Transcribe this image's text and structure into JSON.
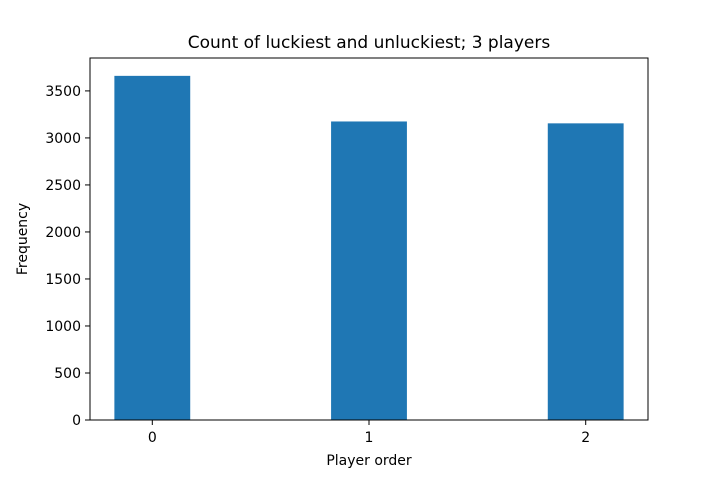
{
  "chart_data": {
    "type": "bar",
    "title": "Count of luckiest and unluckiest; 3 players",
    "xlabel": "Player order",
    "ylabel": "Frequency",
    "categories": [
      "0",
      "1",
      "2"
    ],
    "values": [
      3660,
      3175,
      3155
    ],
    "ylim": [
      0,
      3850
    ],
    "yticks": [
      0,
      500,
      1000,
      1500,
      2000,
      2500,
      3000,
      3500
    ],
    "grid": false,
    "bar_color": "#1f77b4"
  }
}
